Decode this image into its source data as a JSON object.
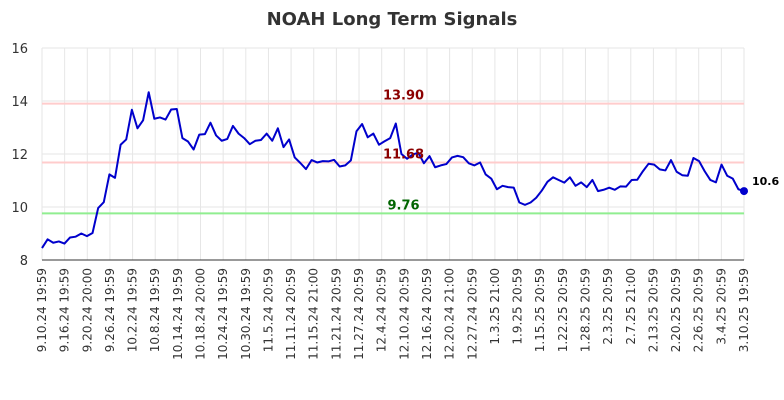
{
  "chart_data": {
    "type": "line",
    "title": "NOAH Long Term Signals",
    "xlabel": "",
    "ylabel": "",
    "ylim": [
      8,
      16
    ],
    "yticks": [
      8,
      10,
      12,
      14,
      16
    ],
    "grid": true,
    "x_tick_labels": [
      "9.10.24 19:59",
      "9.16.24 19:59",
      "9.20.24 20:00",
      "9.26.24 19:59",
      "10.2.24 19:59",
      "10.8.24 19:59",
      "10.14.24 19:59",
      "10.18.24 20:00",
      "10.24.24 19:59",
      "10.30.24 19:59",
      "11.5.24 20:59",
      "11.11.24 20:59",
      "11.15.24 21:00",
      "11.21.24 20:59",
      "11.27.24 20:59",
      "12.4.24 20:59",
      "12.10.24 20:59",
      "12.16.24 20:59",
      "12.20.24 21:00",
      "12.27.24 20:59",
      "1.3.25 21:00",
      "1.9.25 20:59",
      "1.15.25 20:59",
      "1.22.25 20:59",
      "1.28.25 20:59",
      "2.3.25 20:59",
      "2.7.25 21:00",
      "2.13.25 20:59",
      "2.20.25 20:59",
      "2.26.25 20:59",
      "3.4.25 20:59",
      "3.10.25 19:59"
    ],
    "series": [
      {
        "color": "#0000cc",
        "values": [
          8.45,
          8.78,
          8.65,
          8.7,
          8.62,
          8.85,
          8.88,
          9.0,
          8.9,
          9.02,
          9.96,
          10.18,
          11.23,
          11.1,
          12.35,
          12.55,
          13.67,
          12.97,
          13.27,
          14.33,
          13.33,
          13.38,
          13.3,
          13.68,
          13.7,
          12.6,
          12.47,
          12.17,
          12.73,
          12.75,
          13.18,
          12.7,
          12.5,
          12.57,
          13.06,
          12.77,
          12.6,
          12.37,
          12.5,
          12.53,
          12.77,
          12.5,
          12.97,
          12.26,
          12.55,
          11.87,
          11.66,
          11.43,
          11.77,
          11.68,
          11.73,
          11.72,
          11.78,
          11.53,
          11.57,
          11.76,
          12.86,
          13.13,
          12.63,
          12.77,
          12.35,
          12.48,
          12.6,
          13.15,
          12.0,
          11.82,
          11.98,
          12.05,
          11.65,
          11.92,
          11.5,
          11.57,
          11.62,
          11.87,
          11.93,
          11.88,
          11.65,
          11.57,
          11.68,
          11.23,
          11.07,
          10.67,
          10.8,
          10.75,
          10.73,
          10.17,
          10.08,
          10.17,
          10.35,
          10.62,
          10.95,
          11.12,
          11.02,
          10.92,
          11.12,
          10.8,
          10.93,
          10.75,
          11.02,
          10.6,
          10.65,
          10.73,
          10.65,
          10.78,
          10.77,
          11.02,
          11.03,
          11.35,
          11.63,
          11.6,
          11.42,
          11.38,
          11.77,
          11.33,
          11.2,
          11.18,
          11.85,
          11.73,
          11.35,
          11.02,
          10.93,
          11.6,
          11.18,
          11.07,
          10.67,
          10.6
        ]
      }
    ],
    "hlines": [
      {
        "value": 13.9,
        "label": "13.90",
        "line_color": "#ffcccc",
        "label_color": "#8b0000"
      },
      {
        "value": 11.68,
        "label": "11.68",
        "line_color": "#ffcccc",
        "label_color": "#8b0000"
      },
      {
        "value": 9.76,
        "label": "9.76",
        "line_color": "#90ee90",
        "label_color": "#006400"
      }
    ],
    "last_value_label": "10.6",
    "last_point_color": "#0000cc"
  }
}
